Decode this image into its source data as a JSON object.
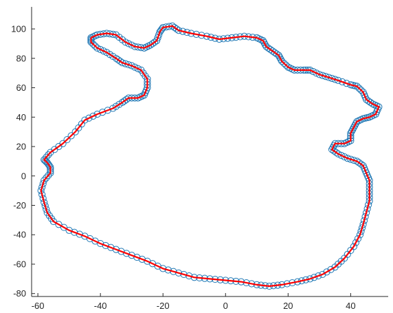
{
  "chart_data": {
    "type": "line",
    "title": "",
    "xlabel": "",
    "ylabel": "",
    "xlim": [
      -62,
      52
    ],
    "ylim": [
      -82,
      115
    ],
    "grid": false,
    "x_ticks": [
      -60,
      -40,
      -20,
      0,
      20,
      40
    ],
    "y_ticks": [
      -80,
      -60,
      -40,
      -20,
      0,
      20,
      40,
      60,
      80,
      100
    ],
    "colors": {
      "markers": "#1f77b4",
      "line": "#ff0000",
      "axis": "#262626"
    },
    "series": [
      {
        "style": "markers",
        "marker": "circle",
        "points": [
          [
            -43,
            94
          ],
          [
            -41,
            96
          ],
          [
            -38,
            97
          ],
          [
            -35,
            96
          ],
          [
            -32,
            91
          ],
          [
            -29,
            88
          ],
          [
            -26,
            87
          ],
          [
            -24,
            89
          ],
          [
            -22,
            92
          ],
          [
            -21,
            98
          ],
          [
            -20,
            101
          ],
          [
            -17,
            102
          ],
          [
            -15,
            99
          ],
          [
            -11,
            97
          ],
          [
            -6,
            95
          ],
          [
            -2,
            93
          ],
          [
            2,
            94
          ],
          [
            6,
            95
          ],
          [
            10,
            94
          ],
          [
            12,
            92
          ],
          [
            13,
            88
          ],
          [
            15,
            85
          ],
          [
            17,
            82
          ],
          [
            18,
            78
          ],
          [
            20,
            74
          ],
          [
            22,
            72
          ],
          [
            25,
            72
          ],
          [
            27,
            72
          ],
          [
            30,
            69
          ],
          [
            33,
            67
          ],
          [
            36,
            65
          ],
          [
            40,
            62
          ],
          [
            42,
            61
          ],
          [
            44,
            57
          ],
          [
            45,
            52
          ],
          [
            47,
            49
          ],
          [
            49,
            47
          ],
          [
            48,
            42
          ],
          [
            46,
            40
          ],
          [
            44,
            39
          ],
          [
            42,
            37
          ],
          [
            41,
            33
          ],
          [
            40,
            29
          ],
          [
            40,
            24
          ],
          [
            38,
            22
          ],
          [
            35,
            22
          ],
          [
            34,
            18
          ],
          [
            36,
            15
          ],
          [
            39,
            12
          ],
          [
            42,
            10
          ],
          [
            44,
            7
          ],
          [
            45,
            2
          ],
          [
            46,
            -3
          ],
          [
            46,
            -10
          ],
          [
            46,
            -17
          ],
          [
            45,
            -25
          ],
          [
            44,
            -33
          ],
          [
            43,
            -40
          ],
          [
            41,
            -48
          ],
          [
            38,
            -56
          ],
          [
            35,
            -62
          ],
          [
            31,
            -67
          ],
          [
            27,
            -70
          ],
          [
            23,
            -72
          ],
          [
            18,
            -74
          ],
          [
            14,
            -75
          ],
          [
            10,
            -74
          ],
          [
            5,
            -72
          ],
          [
            0,
            -71
          ],
          [
            -5,
            -70
          ],
          [
            -10,
            -69
          ],
          [
            -15,
            -66
          ],
          [
            -20,
            -63
          ],
          [
            -25,
            -58
          ],
          [
            -30,
            -54
          ],
          [
            -35,
            -50
          ],
          [
            -40,
            -46
          ],
          [
            -45,
            -41
          ],
          [
            -50,
            -37
          ],
          [
            -55,
            -31
          ],
          [
            -57,
            -25
          ],
          [
            -58,
            -18
          ],
          [
            -59,
            -10
          ],
          [
            -58,
            -3
          ],
          [
            -56,
            2
          ],
          [
            -56,
            6
          ],
          [
            -57,
            9
          ],
          [
            -58,
            11
          ],
          [
            -56,
            16
          ],
          [
            -52,
            22
          ],
          [
            -48,
            30
          ],
          [
            -45,
            38
          ],
          [
            -41,
            42
          ],
          [
            -36,
            46
          ],
          [
            -33,
            50
          ],
          [
            -31,
            53
          ],
          [
            -28,
            53
          ],
          [
            -26,
            55
          ],
          [
            -25,
            60
          ],
          [
            -25,
            66
          ],
          [
            -27,
            72
          ],
          [
            -30,
            75
          ],
          [
            -33,
            77
          ],
          [
            -35,
            80
          ],
          [
            -38,
            84
          ],
          [
            -41,
            87
          ],
          [
            -43,
            91
          ]
        ]
      },
      {
        "style": "line",
        "points": [
          [
            -43,
            94
          ],
          [
            -41,
            96
          ],
          [
            -38,
            97
          ],
          [
            -35,
            96
          ],
          [
            -32,
            91
          ],
          [
            -29,
            88
          ],
          [
            -26,
            87
          ],
          [
            -24,
            89
          ],
          [
            -22,
            92
          ],
          [
            -21,
            98
          ],
          [
            -20,
            101
          ],
          [
            -17,
            102
          ],
          [
            -15,
            99
          ],
          [
            -11,
            97
          ],
          [
            -6,
            95
          ],
          [
            -2,
            93
          ],
          [
            2,
            94
          ],
          [
            6,
            95
          ],
          [
            10,
            94
          ],
          [
            12,
            92
          ],
          [
            13,
            88
          ],
          [
            15,
            85
          ],
          [
            17,
            82
          ],
          [
            18,
            78
          ],
          [
            20,
            74
          ],
          [
            22,
            72
          ],
          [
            25,
            72
          ],
          [
            27,
            72
          ],
          [
            30,
            69
          ],
          [
            33,
            67
          ],
          [
            36,
            65
          ],
          [
            40,
            62
          ],
          [
            42,
            61
          ],
          [
            44,
            57
          ],
          [
            45,
            52
          ],
          [
            47,
            49
          ],
          [
            49,
            47
          ],
          [
            48,
            42
          ],
          [
            46,
            40
          ],
          [
            44,
            39
          ],
          [
            42,
            37
          ],
          [
            41,
            33
          ],
          [
            40,
            29
          ],
          [
            40,
            24
          ],
          [
            38,
            22
          ],
          [
            35,
            22
          ],
          [
            34,
            18
          ],
          [
            36,
            15
          ],
          [
            39,
            12
          ],
          [
            42,
            10
          ],
          [
            44,
            7
          ],
          [
            45,
            2
          ],
          [
            46,
            -3
          ],
          [
            46,
            -10
          ],
          [
            46,
            -17
          ],
          [
            45,
            -25
          ],
          [
            44,
            -33
          ],
          [
            43,
            -40
          ],
          [
            41,
            -48
          ],
          [
            38,
            -56
          ],
          [
            35,
            -62
          ],
          [
            31,
            -67
          ],
          [
            27,
            -70
          ],
          [
            23,
            -72
          ],
          [
            18,
            -74
          ],
          [
            14,
            -75
          ],
          [
            10,
            -74
          ],
          [
            5,
            -72
          ],
          [
            0,
            -71
          ],
          [
            -5,
            -70
          ],
          [
            -10,
            -69
          ],
          [
            -15,
            -66
          ],
          [
            -20,
            -63
          ],
          [
            -25,
            -58
          ],
          [
            -30,
            -54
          ],
          [
            -35,
            -50
          ],
          [
            -40,
            -46
          ],
          [
            -45,
            -41
          ],
          [
            -50,
            -37
          ],
          [
            -55,
            -31
          ],
          [
            -57,
            -25
          ],
          [
            -58,
            -18
          ],
          [
            -59,
            -10
          ],
          [
            -58,
            -3
          ],
          [
            -56,
            2
          ],
          [
            -56,
            6
          ],
          [
            -57,
            9
          ],
          [
            -58,
            11
          ],
          [
            -56,
            16
          ],
          [
            -52,
            22
          ],
          [
            -48,
            30
          ],
          [
            -45,
            38
          ],
          [
            -41,
            42
          ],
          [
            -36,
            46
          ],
          [
            -33,
            50
          ],
          [
            -31,
            53
          ],
          [
            -28,
            53
          ],
          [
            -26,
            55
          ],
          [
            -25,
            60
          ],
          [
            -25,
            66
          ],
          [
            -27,
            72
          ],
          [
            -30,
            75
          ],
          [
            -33,
            77
          ],
          [
            -35,
            80
          ],
          [
            -38,
            84
          ],
          [
            -41,
            87
          ],
          [
            -43,
            91
          ]
        ]
      }
    ]
  }
}
